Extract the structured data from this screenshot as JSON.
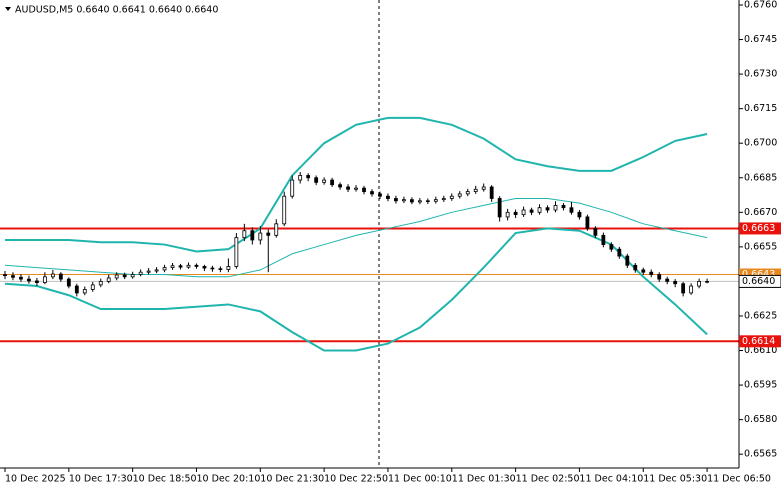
{
  "chart_data": {
    "type": "candlestick",
    "title": "AUDUSD,M5  0.6640 0.6641 0.6640 0.6640",
    "up_color": "#ffffff",
    "down_color": "#000000",
    "band_color": "#1fb5ad",
    "xlim": [
      0,
      92
    ],
    "xticks": [
      {
        "value": 0,
        "label": "10 Dec 2025"
      },
      {
        "value": 8,
        "label": "10 Dec 17:30"
      },
      {
        "value": 16,
        "label": "10 Dec 18:50"
      },
      {
        "value": 24,
        "label": "10 Dec 20:10"
      },
      {
        "value": 32,
        "label": "10 Dec 21:30"
      },
      {
        "value": 40,
        "label": "10 Dec 22:50"
      },
      {
        "value": 48,
        "label": "11 Dec 00:10"
      },
      {
        "value": 56,
        "label": "11 Dec 01:30"
      },
      {
        "value": 64,
        "label": "11 Dec 02:50"
      },
      {
        "value": 72,
        "label": "11 Dec 04:10"
      },
      {
        "value": 80,
        "label": "11 Dec 05:30"
      },
      {
        "value": 88,
        "label": "11 Dec 06:50"
      }
    ],
    "ylim": [
      0.6559,
      0.676
    ],
    "yticks": [
      {
        "value": 0.676,
        "label": "0.6760"
      },
      {
        "value": 0.6745,
        "label": "0.6745"
      },
      {
        "value": 0.673,
        "label": "0.6730"
      },
      {
        "value": 0.6715,
        "label": "0.6715"
      },
      {
        "value": 0.67,
        "label": "0.6700"
      },
      {
        "value": 0.6685,
        "label": "0.6685"
      },
      {
        "value": 0.667,
        "label": "0.6670"
      },
      {
        "value": 0.6655,
        "label": "0.6655"
      },
      {
        "value": 0.664,
        "label": "0.6640"
      },
      {
        "value": 0.6625,
        "label": "0.6625"
      },
      {
        "value": 0.661,
        "label": "0.6610"
      },
      {
        "value": 0.6595,
        "label": "0.6595"
      },
      {
        "value": 0.658,
        "label": "0.6580"
      },
      {
        "value": 0.6565,
        "label": "0.6565"
      }
    ],
    "levels": [
      {
        "value": 0.6663,
        "color": "#e8120c"
      },
      {
        "value": 0.6614,
        "color": "#e8120c"
      },
      {
        "value": 0.6643,
        "color": "#e8891f"
      }
    ],
    "last": {
      "value": 0.664,
      "label": "0.6640"
    },
    "ohlc": [
      [
        0.6643,
        0.66445,
        0.6641,
        0.66425
      ],
      [
        0.66425,
        0.6644,
        0.66405,
        0.66418
      ],
      [
        0.66418,
        0.66432,
        0.66398,
        0.6641
      ],
      [
        0.6641,
        0.66425,
        0.6639,
        0.66402
      ],
      [
        0.66402,
        0.66415,
        0.6638,
        0.66395
      ],
      [
        0.66395,
        0.6644,
        0.66388,
        0.6642
      ],
      [
        0.6642,
        0.6645,
        0.6641,
        0.66432
      ],
      [
        0.66432,
        0.6644,
        0.66398,
        0.6641
      ],
      [
        0.6641,
        0.66418,
        0.6637,
        0.6638
      ],
      [
        0.6638,
        0.6639,
        0.66335,
        0.6635
      ],
      [
        0.6635,
        0.66378,
        0.6634,
        0.66365
      ],
      [
        0.66365,
        0.66398,
        0.66355,
        0.66385
      ],
      [
        0.66385,
        0.66412,
        0.66375,
        0.664
      ],
      [
        0.664,
        0.6643,
        0.66392,
        0.66415
      ],
      [
        0.66415,
        0.6644,
        0.66405,
        0.66428
      ],
      [
        0.66428,
        0.66438,
        0.6641,
        0.6642
      ],
      [
        0.6642,
        0.66442,
        0.66412,
        0.6643
      ],
      [
        0.6643,
        0.66452,
        0.66422,
        0.6644
      ],
      [
        0.6644,
        0.66458,
        0.6643,
        0.66445
      ],
      [
        0.66445,
        0.66462,
        0.66436,
        0.6645
      ],
      [
        0.6645,
        0.66472,
        0.6644,
        0.6646
      ],
      [
        0.6646,
        0.6648,
        0.6645,
        0.66468
      ],
      [
        0.66468,
        0.66476,
        0.66452,
        0.66462
      ],
      [
        0.66462,
        0.66482,
        0.66455,
        0.6647
      ],
      [
        0.6647,
        0.66478,
        0.66455,
        0.66465
      ],
      [
        0.66465,
        0.66472,
        0.66445,
        0.66458
      ],
      [
        0.66458,
        0.66468,
        0.66442,
        0.66455
      ],
      [
        0.66455,
        0.66465,
        0.6644,
        0.66452
      ],
      [
        0.66452,
        0.665,
        0.6644,
        0.66465
      ],
      [
        0.66465,
        0.6661,
        0.66455,
        0.6659
      ],
      [
        0.6659,
        0.6665,
        0.66575,
        0.6662
      ],
      [
        0.6662,
        0.66635,
        0.6656,
        0.6658
      ],
      [
        0.6658,
        0.6664,
        0.6656,
        0.6661
      ],
      [
        0.6661,
        0.66625,
        0.6644,
        0.666
      ],
      [
        0.666,
        0.6667,
        0.6659,
        0.6665
      ],
      [
        0.6665,
        0.6679,
        0.6664,
        0.6677
      ],
      [
        0.6677,
        0.6686,
        0.6676,
        0.6684
      ],
      [
        0.6684,
        0.66875,
        0.66825,
        0.6686
      ],
      [
        0.6686,
        0.6687,
        0.66835,
        0.6685
      ],
      [
        0.6685,
        0.6686,
        0.66818,
        0.6683
      ],
      [
        0.6683,
        0.66852,
        0.6682,
        0.6684
      ],
      [
        0.6684,
        0.6685,
        0.6681,
        0.6682
      ],
      [
        0.6682,
        0.6683,
        0.66798,
        0.6681
      ],
      [
        0.6681,
        0.66822,
        0.66788,
        0.668
      ],
      [
        0.668,
        0.66818,
        0.6679,
        0.66805
      ],
      [
        0.66805,
        0.66815,
        0.66778,
        0.6679
      ],
      [
        0.6679,
        0.668,
        0.66768,
        0.6678
      ],
      [
        0.6678,
        0.6679,
        0.66758,
        0.6677
      ],
      [
        0.6677,
        0.66782,
        0.66748,
        0.6676
      ],
      [
        0.6676,
        0.66772,
        0.66738,
        0.6675
      ],
      [
        0.6675,
        0.66768,
        0.6674,
        0.66755
      ],
      [
        0.66755,
        0.66765,
        0.66735,
        0.66745
      ],
      [
        0.66745,
        0.66762,
        0.66735,
        0.6675
      ],
      [
        0.6675,
        0.6676,
        0.66736,
        0.66748
      ],
      [
        0.66748,
        0.66768,
        0.66738,
        0.66755
      ],
      [
        0.66755,
        0.66772,
        0.66745,
        0.6676
      ],
      [
        0.6676,
        0.66782,
        0.6675,
        0.6677
      ],
      [
        0.6677,
        0.66792,
        0.6676,
        0.6678
      ],
      [
        0.6678,
        0.66802,
        0.6677,
        0.6679
      ],
      [
        0.6679,
        0.66815,
        0.6678,
        0.668
      ],
      [
        0.668,
        0.66825,
        0.6679,
        0.6681
      ],
      [
        0.6681,
        0.66818,
        0.66745,
        0.6676
      ],
      [
        0.6676,
        0.6677,
        0.6666,
        0.6668
      ],
      [
        0.6668,
        0.66715,
        0.66665,
        0.667
      ],
      [
        0.667,
        0.66712,
        0.66675,
        0.6669
      ],
      [
        0.6669,
        0.66725,
        0.6668,
        0.6671
      ],
      [
        0.6671,
        0.6672,
        0.66688,
        0.667
      ],
      [
        0.667,
        0.66735,
        0.6669,
        0.6672
      ],
      [
        0.6672,
        0.6673,
        0.66698,
        0.6671
      ],
      [
        0.6671,
        0.66748,
        0.667,
        0.6673
      ],
      [
        0.6673,
        0.6674,
        0.66708,
        0.6672
      ],
      [
        0.6672,
        0.66745,
        0.6669,
        0.667
      ],
      [
        0.667,
        0.6671,
        0.66668,
        0.6668
      ],
      [
        0.6668,
        0.6669,
        0.6662,
        0.6663
      ],
      [
        0.6663,
        0.6664,
        0.66588,
        0.666
      ],
      [
        0.666,
        0.66612,
        0.66548,
        0.6656
      ],
      [
        0.6656,
        0.6657,
        0.66528,
        0.6654
      ],
      [
        0.6654,
        0.6655,
        0.66498,
        0.6651
      ],
      [
        0.6651,
        0.6652,
        0.66458,
        0.6647
      ],
      [
        0.6647,
        0.6648,
        0.66438,
        0.6645
      ],
      [
        0.6645,
        0.6646,
        0.66428,
        0.6644
      ],
      [
        0.6644,
        0.66452,
        0.66418,
        0.6643
      ],
      [
        0.6643,
        0.6644,
        0.66398,
        0.6641
      ],
      [
        0.6641,
        0.6642,
        0.66388,
        0.664
      ],
      [
        0.664,
        0.6641,
        0.66375,
        0.6639
      ],
      [
        0.6639,
        0.66398,
        0.66335,
        0.6635
      ],
      [
        0.6635,
        0.66392,
        0.66342,
        0.6638
      ],
      [
        0.6638,
        0.66412,
        0.6637,
        0.664
      ],
      [
        0.664,
        0.66412,
        0.66392,
        0.664
      ]
    ],
    "band_x": [
      0,
      4,
      8,
      12,
      16,
      20,
      24,
      28,
      32,
      36,
      40,
      44,
      48,
      52,
      56,
      60,
      64,
      68,
      72,
      76,
      80,
      84,
      88
    ],
    "upper": [
      0.6658,
      0.6658,
      0.6658,
      0.6657,
      0.6657,
      0.6656,
      0.6653,
      0.6654,
      0.6663,
      0.6686,
      0.67,
      0.6708,
      0.6711,
      0.6711,
      0.6708,
      0.6702,
      0.6693,
      0.669,
      0.6688,
      0.6688,
      0.6694,
      0.6701,
      0.6704
    ],
    "middle": [
      0.6647,
      0.6646,
      0.6645,
      0.6644,
      0.6643,
      0.6643,
      0.6642,
      0.6642,
      0.6645,
      0.6652,
      0.6656,
      0.666,
      0.6663,
      0.6666,
      0.667,
      0.6673,
      0.6676,
      0.6676,
      0.6674,
      0.667,
      0.6665,
      0.6662,
      0.6659
    ],
    "lower": [
      0.6639,
      0.6638,
      0.6634,
      0.6628,
      0.6628,
      0.6628,
      0.6629,
      0.663,
      0.6627,
      0.6618,
      0.661,
      0.661,
      0.6613,
      0.662,
      0.6632,
      0.6646,
      0.6661,
      0.6663,
      0.6662,
      0.6656,
      0.6642,
      0.663,
      0.6617
    ]
  }
}
